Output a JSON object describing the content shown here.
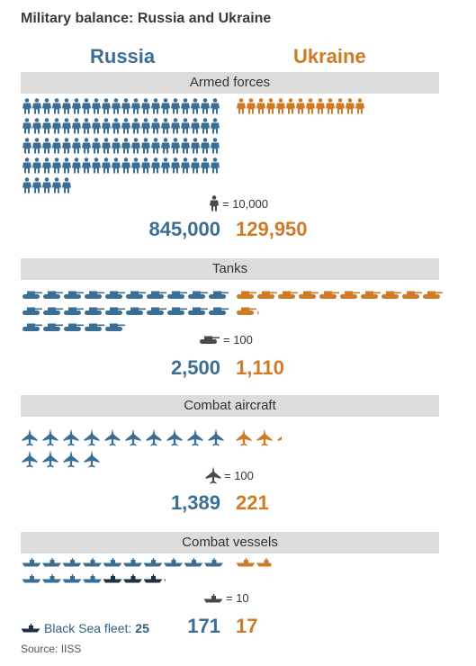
{
  "title": "Military balance: Russia and Ukraine",
  "headers": {
    "left": "Russia",
    "right": "Ukraine"
  },
  "colors": {
    "russia": "#3b6e94",
    "ukraine": "#d07a26",
    "black_sea": "#1e3145",
    "legend": "#4a4a4a",
    "band": "#dcdcdc"
  },
  "sections": {
    "armed": {
      "label": "Armed forces",
      "unit_label": "= 10,000",
      "russia_value": "845,000",
      "ukraine_value": "129,950"
    },
    "tanks": {
      "label": "Tanks",
      "unit_label": "= 100",
      "russia_value": "2,500",
      "ukraine_value": "1,110"
    },
    "aircraft": {
      "label": "Combat aircraft",
      "unit_label": "= 100",
      "russia_value": "1,389",
      "ukraine_value": "221"
    },
    "vessels": {
      "label": "Combat vessels",
      "unit_label": "= 10",
      "russia_value": "171",
      "ukraine_value": "17"
    }
  },
  "black_sea": {
    "label": "Black Sea fleet:",
    "value": "25"
  },
  "source": "Source: IISS",
  "chart_data": {
    "type": "pictogram",
    "title": "Military balance: Russia and Ukraine",
    "series": [
      {
        "name": "Russia",
        "values": [
          845000,
          2500,
          1389,
          171
        ]
      },
      {
        "name": "Ukraine",
        "values": [
          129950,
          1110,
          221,
          17
        ]
      }
    ],
    "categories": [
      "Armed forces",
      "Tanks",
      "Combat aircraft",
      "Combat vessels"
    ],
    "units_per_icon": [
      10000,
      100,
      100,
      10
    ],
    "black_sea_fleet": 25,
    "icon_counts": {
      "russia": [
        84.5,
        25,
        13.89,
        17.1
      ],
      "ukraine": [
        13.0,
        11.1,
        2.21,
        1.7
      ]
    }
  }
}
